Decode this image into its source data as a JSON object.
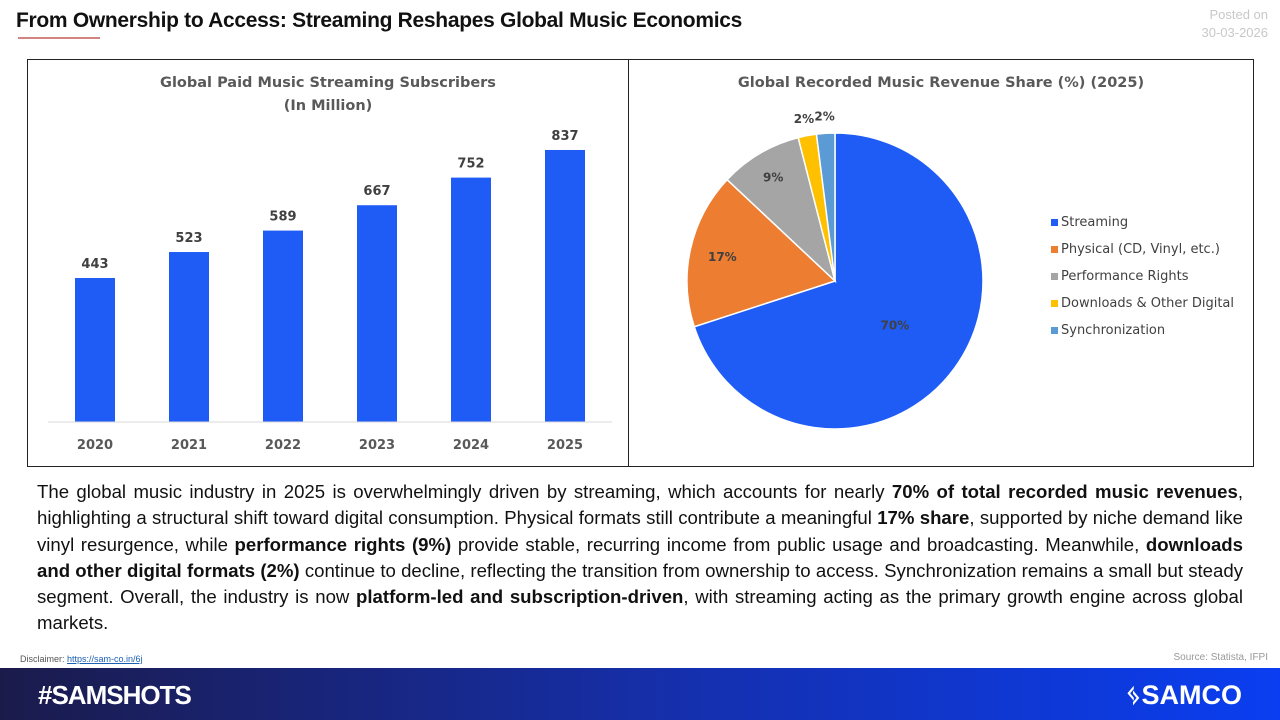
{
  "header": {
    "title": "From Ownership to Access: Streaming Reshapes Global Music Economics",
    "posted_label": "Posted on",
    "posted_date": "30-03-2026"
  },
  "chart_data": [
    {
      "type": "bar",
      "title": "Global Paid Music Streaming Subscribers",
      "subtitle": "(In Million)",
      "categories": [
        "2020",
        "2021",
        "2022",
        "2023",
        "2024",
        "2025"
      ],
      "values": [
        443,
        523,
        589,
        667,
        752,
        837
      ],
      "data_labels": [
        "443",
        "523",
        "589",
        "667",
        "752",
        "837"
      ],
      "ylim": [
        0,
        900
      ],
      "grid": false,
      "color": "#1f5cf5"
    },
    {
      "type": "pie",
      "title": "Global Recorded Music Revenue Share (%) (2025)",
      "categories": [
        "Streaming",
        "Physical (CD, Vinyl, etc.)",
        "Performance Rights",
        "Downloads & Other Digital",
        "Synchronization"
      ],
      "values": [
        70,
        17,
        9,
        2,
        2
      ],
      "data_labels": [
        "70%",
        "17%",
        "9%",
        "2%",
        "2%"
      ],
      "colors": [
        "#1f5cf5",
        "#ed7d31",
        "#a5a5a5",
        "#ffc000",
        "#5b9bd5"
      ],
      "legend": "right"
    }
  ],
  "body": {
    "segments": [
      {
        "t": "The global music industry in 2025 is overwhelmingly driven by streaming, which accounts for nearly ",
        "b": false
      },
      {
        "t": "70% of total recorded music revenues",
        "b": true
      },
      {
        "t": ", highlighting a structural shift toward digital consumption. Physical formats still contribute a meaningful ",
        "b": false
      },
      {
        "t": "17% share",
        "b": true
      },
      {
        "t": ", supported by niche demand like vinyl resurgence, while ",
        "b": false
      },
      {
        "t": "performance rights (9%)",
        "b": true
      },
      {
        "t": " provide stable, recurring income from public usage and broadcasting. Meanwhile, ",
        "b": false
      },
      {
        "t": "downloads and other digital formats (2%)",
        "b": true
      },
      {
        "t": " continue to decline, reflecting the transition from ownership to access. Synchronization remains a small but steady segment. Overall, the industry is now ",
        "b": false
      },
      {
        "t": "platform-led and subscription-driven",
        "b": true
      },
      {
        "t": ", with streaming acting as the primary growth engine across global markets.",
        "b": false
      }
    ]
  },
  "footer": {
    "disclaimer_label": "Disclaimer:",
    "disclaimer_link": "https://sam-co.in/6j",
    "source": "Source: Statista, IFPI",
    "hashtag": "#SAMSHOTS",
    "logo": "SAMCO"
  }
}
